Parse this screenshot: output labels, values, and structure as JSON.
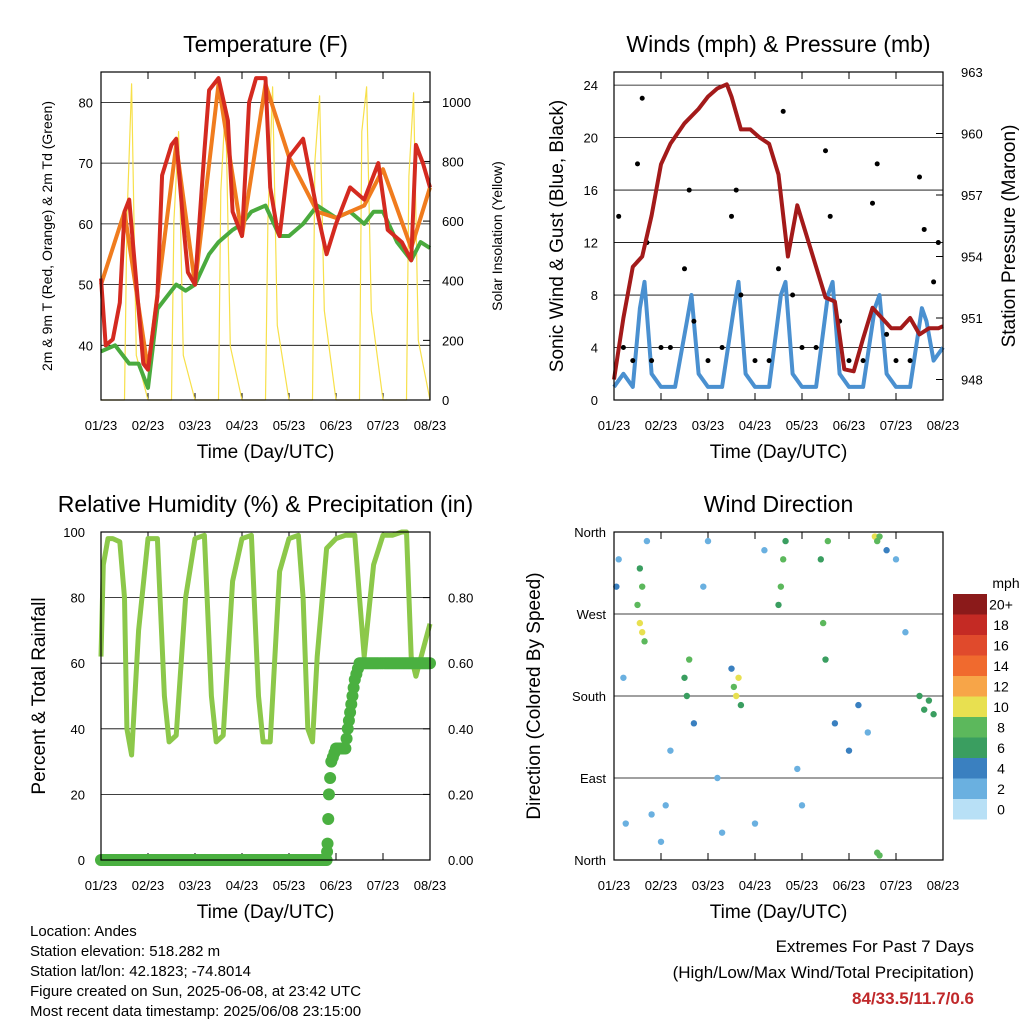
{
  "panels": {
    "temperature": {
      "title": "Temperature (F)",
      "ylabel_left": "2m & 9m T (Red, Orange) & 2m Td (Green)",
      "ylabel_right": "Solar Insolation (Yellow)",
      "xlabel": "Time (Day/UTC)"
    },
    "winds": {
      "title": "Winds (mph) & Pressure (mb)",
      "ylabel_left": "Sonic Wind & Gust (Blue, Black)",
      "ylabel_right": "Station Pressure (Maroon)",
      "xlabel": "Time (Day/UTC)"
    },
    "humidity": {
      "title": "Relative Humidity (%) & Precipitation (in)",
      "ylabel_left": "Percent & Total Rainfall",
      "xlabel": "Time (Day/UTC)"
    },
    "direction": {
      "title": "Wind Direction",
      "ylabel_left": "Direction (Colored By Speed)",
      "xlabel": "Time (Day/UTC)"
    }
  },
  "info": {
    "location": "Location: Andes",
    "elevation": "Station elevation: 518.282 m",
    "latlon": "Station lat/lon: 42.1823; -74.8014",
    "created": "Figure created on Sun, 2025-06-08, at 23:42 UTC",
    "timestamp": "Most recent data timestamp: 2025/06/08 23:15:00"
  },
  "extremes": {
    "line1": "Extremes For Past 7 Days",
    "line2": "(High/Low/Max Wind/Total Precipitation)",
    "values": "84/33.5/11.7/0.6"
  },
  "colors": {
    "temp_2m": "#d42a20",
    "temp_9m": "#f07c1e",
    "dewpoint": "#4aaa3e",
    "solar": "#f7e04a",
    "gust": "#000000",
    "wind": "#4a90d0",
    "pressure": "#a31a1a",
    "humidity": "#8cc84a",
    "precip": "#4ab040"
  },
  "chart_data": [
    {
      "type": "line",
      "title": "Temperature (F)",
      "x_ticks": [
        "01/23",
        "02/23",
        "03/23",
        "04/23",
        "05/23",
        "06/23",
        "07/23",
        "08/23"
      ],
      "x_range": [
        0,
        7
      ],
      "ylim_left": [
        31,
        85
      ],
      "yticks_left": [
        40,
        50,
        60,
        70,
        80
      ],
      "ylim_right": [
        0,
        1100
      ],
      "yticks_right": [
        0,
        200,
        400,
        600,
        800,
        1000
      ],
      "series": [
        {
          "name": "2m T",
          "color": "#d42a20",
          "x": [
            0,
            0.1,
            0.25,
            0.4,
            0.5,
            0.6,
            0.8,
            0.9,
            1.0,
            1.2,
            1.3,
            1.5,
            1.6,
            1.75,
            1.85,
            2.0,
            2.2,
            2.3,
            2.5,
            2.7,
            2.8,
            3.0,
            3.15,
            3.3,
            3.5,
            3.6,
            3.75,
            3.8,
            4.0,
            4.3,
            4.6,
            4.8,
            5.0,
            5.3,
            5.6,
            5.75,
            5.9,
            6.1,
            6.4,
            6.6,
            6.7,
            6.85,
            7.0
          ],
          "y": [
            51,
            40,
            41,
            47,
            62,
            64,
            46,
            37,
            36,
            48,
            68,
            73,
            74,
            60,
            52,
            50,
            72,
            82,
            84,
            77,
            62,
            58,
            80,
            84,
            84,
            66,
            59,
            58,
            71,
            74,
            62,
            55,
            60,
            66,
            64,
            67,
            70,
            59,
            57,
            54,
            73,
            70,
            66
          ]
        },
        {
          "name": "9m T",
          "color": "#f07c1e",
          "x": [
            0,
            0.5,
            1.0,
            1.6,
            2.0,
            2.5,
            3.0,
            3.5,
            4.0,
            4.6,
            5.0,
            5.6,
            6.0,
            6.6,
            7.0
          ],
          "y": [
            50,
            62,
            36,
            73,
            50,
            83,
            58,
            83,
            71,
            62,
            61,
            63,
            69,
            56,
            66
          ]
        },
        {
          "name": "2m Td",
          "color": "#4aaa3e",
          "x": [
            0,
            0.3,
            0.6,
            0.8,
            1.0,
            1.2,
            1.4,
            1.6,
            1.8,
            2.0,
            2.3,
            2.5,
            2.8,
            3.0,
            3.2,
            3.5,
            3.8,
            4.0,
            4.3,
            4.6,
            4.8,
            5.0,
            5.3,
            5.6,
            5.8,
            6.0,
            6.3,
            6.6,
            6.8,
            7.0
          ],
          "y": [
            39,
            40,
            37,
            37,
            33,
            46,
            48,
            50,
            49,
            50,
            55,
            57,
            59,
            60,
            62,
            63,
            58,
            58,
            60,
            63,
            62,
            61,
            62,
            60,
            62,
            62,
            57,
            54,
            57,
            56
          ]
        },
        {
          "name": "Solar Insolation",
          "color": "#f7e04a",
          "x": [
            0,
            0.5,
            0.55,
            0.65,
            0.75,
            1.0,
            1.5,
            1.55,
            1.65,
            1.75,
            2.0,
            2.5,
            2.55,
            2.65,
            2.75,
            3.0,
            3.5,
            3.55,
            3.65,
            3.75,
            4.0,
            4.5,
            4.55,
            4.65,
            4.75,
            5.0,
            5.5,
            5.55,
            5.65,
            5.75,
            6.0,
            6.5,
            6.55,
            6.65,
            6.75,
            7.0
          ],
          "y": [
            0,
            0,
            600,
            1060,
            150,
            0,
            0,
            600,
            900,
            150,
            0,
            0,
            700,
            1000,
            180,
            0,
            0,
            600,
            1050,
            250,
            0,
            0,
            800,
            1020,
            300,
            0,
            0,
            900,
            1050,
            300,
            0,
            0,
            750,
            1030,
            200,
            0
          ]
        }
      ]
    },
    {
      "type": "scatter",
      "title": "Winds (mph) & Pressure (mb)",
      "x_ticks": [
        "01/23",
        "02/23",
        "03/23",
        "04/23",
        "05/23",
        "06/23",
        "07/23",
        "08/23"
      ],
      "x_range": [
        0,
        7
      ],
      "ylim_left": [
        0,
        25
      ],
      "yticks_left": [
        0,
        4,
        8,
        12,
        16,
        20,
        24
      ],
      "ylim_right": [
        947,
        963
      ],
      "yticks_right": [
        948,
        951,
        954,
        957,
        960,
        963
      ],
      "series": [
        {
          "name": "Gust",
          "color": "#000000",
          "x": [
            0.1,
            0.2,
            0.4,
            0.5,
            0.6,
            0.7,
            0.8,
            1.0,
            1.2,
            1.5,
            1.6,
            1.7,
            2.0,
            2.3,
            2.5,
            2.6,
            2.7,
            3.0,
            3.3,
            3.5,
            3.6,
            3.8,
            4.0,
            4.3,
            4.5,
            4.6,
            4.8,
            5.0,
            5.3,
            5.5,
            5.6,
            5.8,
            6.0,
            6.3,
            6.5,
            6.6,
            6.8,
            6.9
          ],
          "y": [
            14,
            4,
            3,
            18,
            23,
            12,
            3,
            4,
            4,
            10,
            16,
            6,
            3,
            4,
            14,
            16,
            8,
            3,
            3,
            10,
            22,
            8,
            4,
            4,
            19,
            14,
            6,
            3,
            3,
            15,
            18,
            5,
            3,
            3,
            17,
            13,
            9,
            12
          ]
        },
        {
          "name": "Wind",
          "color": "#4a90d0",
          "x": [
            0,
            0.2,
            0.4,
            0.55,
            0.65,
            0.8,
            1.0,
            1.3,
            1.55,
            1.65,
            1.8,
            2.0,
            2.3,
            2.55,
            2.65,
            2.8,
            3.0,
            3.3,
            3.55,
            3.65,
            3.8,
            4.0,
            4.3,
            4.55,
            4.65,
            4.8,
            5.0,
            5.3,
            5.55,
            5.65,
            5.8,
            6.0,
            6.3,
            6.55,
            6.65,
            6.8,
            7.0
          ],
          "y": [
            1,
            2,
            1,
            7,
            9,
            2,
            1,
            1,
            6,
            8,
            2,
            1,
            1,
            7,
            9,
            2,
            1,
            1,
            8,
            9,
            2,
            1,
            1,
            8,
            9,
            2,
            1,
            1,
            7,
            8,
            2,
            1,
            1,
            7,
            6,
            3,
            4
          ]
        },
        {
          "name": "Station Pressure",
          "color": "#a31a1a",
          "x": [
            0,
            0.2,
            0.4,
            0.6,
            0.8,
            1.0,
            1.2,
            1.5,
            1.8,
            2.0,
            2.2,
            2.4,
            2.5,
            2.7,
            2.9,
            3.1,
            3.3,
            3.5,
            3.7,
            3.9,
            4.1,
            4.3,
            4.5,
            4.7,
            4.9,
            5.1,
            5.3,
            5.5,
            5.7,
            5.9,
            6.1,
            6.3,
            6.5,
            6.7,
            6.9,
            7.0
          ],
          "y": [
            948,
            951,
            953.5,
            954,
            956,
            958.5,
            959.5,
            960.5,
            961.2,
            961.8,
            962.2,
            962.4,
            961.8,
            960.2,
            960.2,
            959.8,
            959.5,
            958,
            954,
            956.5,
            955,
            953.5,
            952,
            951.8,
            948.5,
            948.4,
            950,
            951.5,
            951,
            950.5,
            950.5,
            951,
            950.2,
            950.5,
            950.5,
            950.6
          ]
        }
      ]
    },
    {
      "type": "line",
      "title": "Relative Humidity (%) & Precipitation (in)",
      "x_ticks": [
        "01/23",
        "02/23",
        "03/23",
        "04/23",
        "05/23",
        "06/23",
        "07/23",
        "08/23"
      ],
      "x_range": [
        0,
        7
      ],
      "ylim_left": [
        0,
        100
      ],
      "yticks_left": [
        0,
        20,
        40,
        60,
        80,
        100
      ],
      "ylim_right": [
        0,
        1.0
      ],
      "yticks_right": [
        0.0,
        0.2,
        0.4,
        0.6,
        0.8
      ],
      "series": [
        {
          "name": "Relative Humidity",
          "color": "#8cc84a",
          "x": [
            0,
            0.05,
            0.15,
            0.25,
            0.4,
            0.5,
            0.55,
            0.65,
            0.8,
            1.0,
            1.2,
            1.35,
            1.45,
            1.6,
            1.8,
            2.0,
            2.2,
            2.35,
            2.45,
            2.6,
            2.8,
            3.0,
            3.2,
            3.35,
            3.45,
            3.6,
            3.8,
            4.0,
            4.2,
            4.3,
            4.4,
            4.5,
            4.6,
            4.8,
            5.0,
            5.2,
            5.4,
            5.5,
            5.6,
            5.8,
            6.0,
            6.2,
            6.4,
            6.5,
            6.6,
            6.7,
            6.85,
            7.0
          ],
          "y": [
            62,
            90,
            98,
            98,
            97,
            80,
            40,
            32,
            70,
            98,
            98,
            50,
            36,
            38,
            80,
            98,
            99,
            50,
            36,
            38,
            85,
            98,
            99,
            50,
            36,
            36,
            88,
            98,
            99,
            80,
            40,
            36,
            62,
            95,
            98,
            99,
            99,
            80,
            62,
            90,
            99,
            99,
            100,
            100,
            62,
            56,
            64,
            72
          ]
        },
        {
          "name": "Total Precipitation",
          "color": "#4ab040",
          "x": [
            0,
            4.8,
            4.82,
            4.85,
            4.9,
            5.0,
            5.2,
            5.25,
            5.3,
            5.35,
            5.4,
            5.5,
            5.6,
            5.8,
            6.0,
            6.5,
            7.0
          ],
          "y": [
            0,
            0,
            0.05,
            0.2,
            0.3,
            0.34,
            0.34,
            0.4,
            0.45,
            0.5,
            0.55,
            0.6,
            0.6,
            0.6,
            0.6,
            0.6,
            0.6
          ]
        }
      ]
    },
    {
      "type": "scatter",
      "title": "Wind Direction",
      "x_ticks": [
        "01/23",
        "02/23",
        "03/23",
        "04/23",
        "05/23",
        "06/23",
        "07/23",
        "08/23"
      ],
      "x_range": [
        0,
        7
      ],
      "y_ticks": [
        "North",
        "East",
        "South",
        "West",
        "North"
      ],
      "ylim": [
        0,
        360
      ],
      "legend": {
        "title": "mph",
        "labels": [
          "20+",
          "18",
          "16",
          "14",
          "12",
          "10",
          "8",
          "6",
          "4",
          "2",
          "0"
        ],
        "colors": [
          "#8b1a1a",
          "#c42a24",
          "#e04a2c",
          "#f06a2e",
          "#f7a548",
          "#e8e050",
          "#5cb85c",
          "#3a9e60",
          "#3a80c0",
          "#6ab0e0",
          "#b8e0f6"
        ]
      },
      "points": [
        {
          "x": 0.05,
          "y": 300,
          "s": 4
        },
        {
          "x": 0.1,
          "y": 330,
          "s": 2
        },
        {
          "x": 0.2,
          "y": 200,
          "s": 1
        },
        {
          "x": 0.25,
          "y": 40,
          "s": 1
        },
        {
          "x": 0.5,
          "y": 280,
          "s": 7
        },
        {
          "x": 0.55,
          "y": 260,
          "s": 9
        },
        {
          "x": 0.6,
          "y": 250,
          "s": 10
        },
        {
          "x": 0.65,
          "y": 240,
          "s": 8
        },
        {
          "x": 0.55,
          "y": 320,
          "s": 6
        },
        {
          "x": 0.6,
          "y": 300,
          "s": 7
        },
        {
          "x": 0.7,
          "y": 350,
          "s": 2
        },
        {
          "x": 0.8,
          "y": 50,
          "s": 1
        },
        {
          "x": 1.0,
          "y": 20,
          "s": 1
        },
        {
          "x": 1.1,
          "y": 60,
          "s": 1
        },
        {
          "x": 1.2,
          "y": 120,
          "s": 1
        },
        {
          "x": 1.5,
          "y": 200,
          "s": 5
        },
        {
          "x": 1.55,
          "y": 180,
          "s": 6
        },
        {
          "x": 1.6,
          "y": 220,
          "s": 7
        },
        {
          "x": 1.7,
          "y": 150,
          "s": 3
        },
        {
          "x": 1.9,
          "y": 300,
          "s": 2
        },
        {
          "x": 2.0,
          "y": 350,
          "s": 1
        },
        {
          "x": 2.2,
          "y": 90,
          "s": 2
        },
        {
          "x": 2.3,
          "y": 30,
          "s": 1
        },
        {
          "x": 2.5,
          "y": 210,
          "s": 4
        },
        {
          "x": 2.55,
          "y": 190,
          "s": 8
        },
        {
          "x": 2.6,
          "y": 180,
          "s": 10
        },
        {
          "x": 2.65,
          "y": 200,
          "s": 9
        },
        {
          "x": 2.7,
          "y": 170,
          "s": 6
        },
        {
          "x": 3.0,
          "y": 40,
          "s": 1
        },
        {
          "x": 3.2,
          "y": 340,
          "s": 1
        },
        {
          "x": 3.5,
          "y": 280,
          "s": 6
        },
        {
          "x": 3.55,
          "y": 300,
          "s": 7
        },
        {
          "x": 3.6,
          "y": 330,
          "s": 8
        },
        {
          "x": 3.65,
          "y": 350,
          "s": 5
        },
        {
          "x": 3.9,
          "y": 100,
          "s": 2
        },
        {
          "x": 4.0,
          "y": 60,
          "s": 1
        },
        {
          "x": 4.4,
          "y": 330,
          "s": 6
        },
        {
          "x": 4.45,
          "y": 260,
          "s": 7
        },
        {
          "x": 4.5,
          "y": 220,
          "s": 6
        },
        {
          "x": 4.55,
          "y": 350,
          "s": 8
        },
        {
          "x": 4.7,
          "y": 150,
          "s": 4
        },
        {
          "x": 5.0,
          "y": 120,
          "s": 3
        },
        {
          "x": 5.2,
          "y": 170,
          "s": 4
        },
        {
          "x": 5.4,
          "y": 140,
          "s": 2
        },
        {
          "x": 5.55,
          "y": 355,
          "s": 9
        },
        {
          "x": 5.6,
          "y": 350,
          "s": 8
        },
        {
          "x": 5.65,
          "y": 355,
          "s": 7
        },
        {
          "x": 5.6,
          "y": 8,
          "s": 8
        },
        {
          "x": 5.65,
          "y": 5,
          "s": 7
        },
        {
          "x": 5.8,
          "y": 340,
          "s": 3
        },
        {
          "x": 6.0,
          "y": 330,
          "s": 2
        },
        {
          "x": 6.2,
          "y": 250,
          "s": 2
        },
        {
          "x": 6.5,
          "y": 180,
          "s": 5
        },
        {
          "x": 6.6,
          "y": 165,
          "s": 6
        },
        {
          "x": 6.7,
          "y": 175,
          "s": 6
        },
        {
          "x": 6.8,
          "y": 160,
          "s": 5
        }
      ]
    }
  ]
}
